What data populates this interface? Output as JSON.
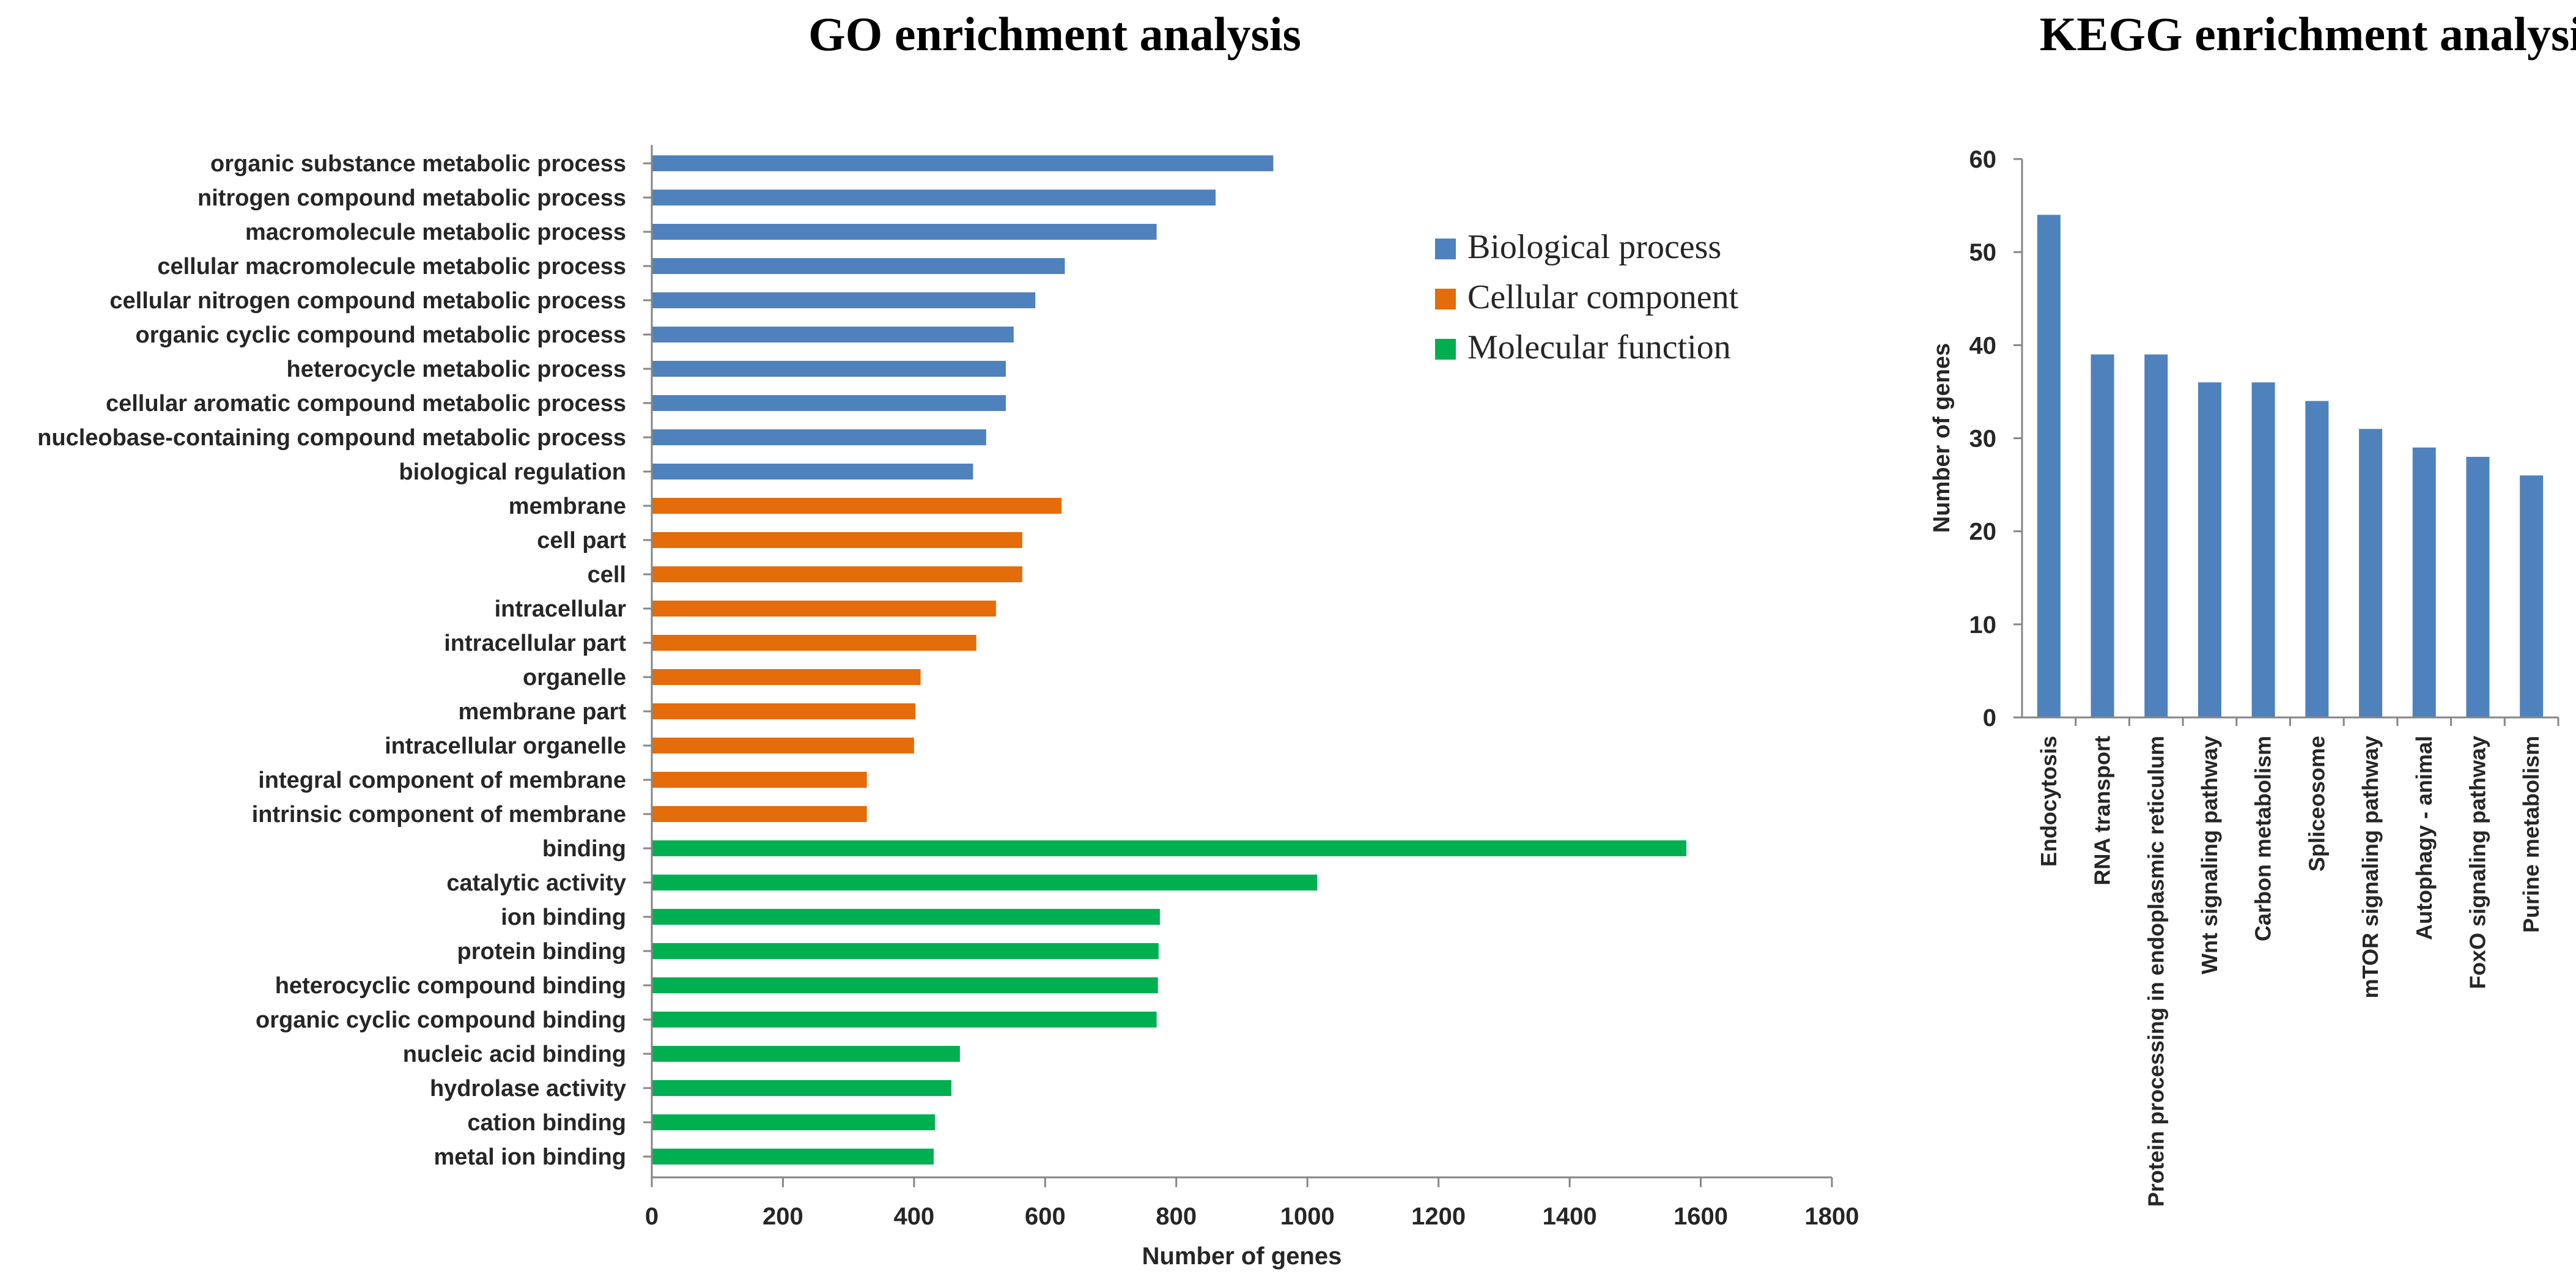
{
  "chart_data": [
    {
      "type": "bar",
      "orientation": "horizontal",
      "title": "GO enrichment analysis",
      "xlabel": "Number of genes",
      "ylabel": "",
      "xlim": [
        0,
        1800
      ],
      "xticks": [
        "0",
        "200",
        "400",
        "600",
        "800",
        "1000",
        "1200",
        "1400",
        "1600",
        "1800"
      ],
      "grid": false,
      "legend_position": "top-right",
      "series": [
        {
          "name": "Biological process",
          "color": "#4f81bd"
        },
        {
          "name": "Cellular component",
          "color": "#e46c0a"
        },
        {
          "name": "Molecular function",
          "color": "#00b050"
        }
      ],
      "categories": [
        "organic substance metabolic process",
        "nitrogen compound metabolic process",
        "macromolecule metabolic process",
        "cellular macromolecule metabolic process",
        "cellular nitrogen compound metabolic process",
        "organic cyclic compound metabolic process",
        "heterocycle metabolic process",
        "cellular aromatic compound metabolic process",
        "nucleobase-containing compound metabolic process",
        "biological regulation",
        "membrane",
        "cell part",
        "cell",
        "intracellular",
        "intracellular part",
        "organelle",
        "membrane part",
        "intracellular organelle",
        "integral component of membrane",
        "intrinsic component of membrane",
        "binding",
        "catalytic activity",
        "ion binding",
        "protein binding",
        "heterocyclic compound binding",
        "organic cyclic compound binding",
        "nucleic acid binding",
        "hydrolase activity",
        "cation binding",
        "metal ion binding"
      ],
      "values": [
        948,
        860,
        770,
        630,
        585,
        552,
        540,
        540,
        510,
        490,
        625,
        565,
        565,
        525,
        495,
        410,
        402,
        400,
        328,
        328,
        1578,
        1015,
        775,
        773,
        772,
        770,
        470,
        457,
        432,
        430
      ],
      "groups": [
        0,
        0,
        0,
        0,
        0,
        0,
        0,
        0,
        0,
        0,
        1,
        1,
        1,
        1,
        1,
        1,
        1,
        1,
        1,
        1,
        2,
        2,
        2,
        2,
        2,
        2,
        2,
        2,
        2,
        2
      ]
    },
    {
      "type": "bar",
      "orientation": "vertical",
      "title": "KEGG enrichment analysis",
      "xlabel": "",
      "ylabel": "Number of genes",
      "ylim": [
        0,
        60
      ],
      "yticks": [
        "0",
        "10",
        "20",
        "30",
        "40",
        "50",
        "60"
      ],
      "grid": false,
      "color": "#4f81bd",
      "categories": [
        "Endocytosis",
        "RNA transport",
        "Protein processing in endoplasmic reticulum",
        "Wnt signaling pathway",
        "Carbon metabolism",
        "Spliceosome",
        "mTOR signaling pathway",
        "Autophagy - animal",
        "FoxO signaling pathway",
        "Purine metabolism"
      ],
      "values": [
        54,
        39,
        39,
        36,
        36,
        34,
        31,
        29,
        28,
        26
      ]
    }
  ]
}
